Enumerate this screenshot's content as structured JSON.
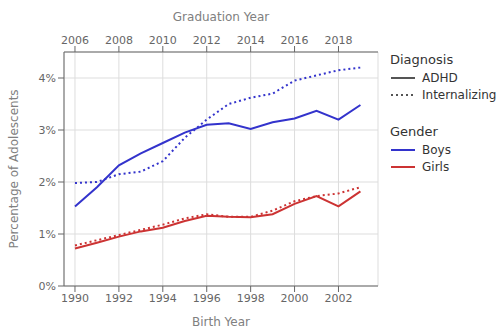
{
  "chart_data": {
    "type": "line",
    "xlabel": "Birth Year",
    "ylabel": "Percentage of Adolescents",
    "x2label": "Graduation Year",
    "x": [
      1990,
      1991,
      1992,
      1993,
      1994,
      1995,
      1996,
      1997,
      1998,
      1999,
      2000,
      2001,
      2002,
      2003
    ],
    "xlim": [
      1989.5,
      2003.8
    ],
    "xticks": [
      1990,
      1992,
      1994,
      1996,
      1998,
      2000,
      2002
    ],
    "x2lim": [
      1989.5,
      2003.8
    ],
    "x2ticks": [
      {
        "value": 1990,
        "label": "2006"
      },
      {
        "value": 1992,
        "label": "2008"
      },
      {
        "value": 1994,
        "label": "2010"
      },
      {
        "value": 1996,
        "label": "2012"
      },
      {
        "value": 1998,
        "label": "2014"
      },
      {
        "value": 2000,
        "label": "2016"
      },
      {
        "value": 2002,
        "label": "2018"
      }
    ],
    "ylim": [
      0,
      0.045
    ],
    "yticks": [
      {
        "value": 0,
        "label": "0%"
      },
      {
        "value": 0.01,
        "label": "1%"
      },
      {
        "value": 0.02,
        "label": "2%"
      },
      {
        "value": 0.03,
        "label": "3%"
      },
      {
        "value": 0.04,
        "label": "4%"
      }
    ],
    "grid": true,
    "legend": "right",
    "series": [
      {
        "color": "#3333cc",
        "line_style": "solid",
        "values": [
          0.0153,
          0.019,
          0.0232,
          0.0255,
          0.0275,
          0.0295,
          0.031,
          0.0313,
          0.0302,
          0.0315,
          0.0322,
          0.0337,
          0.032,
          0.0348
        ]
      },
      {
        "color": "#3333cc",
        "line_style": "dotted",
        "values": [
          0.0198,
          0.02,
          0.0215,
          0.022,
          0.024,
          0.0285,
          0.032,
          0.035,
          0.0362,
          0.037,
          0.0395,
          0.0405,
          0.0415,
          0.042
        ]
      },
      {
        "color": "#cc3333",
        "line_style": "solid",
        "values": [
          0.0072,
          0.0083,
          0.0095,
          0.0105,
          0.0112,
          0.0125,
          0.0135,
          0.0133,
          0.0132,
          0.0138,
          0.0158,
          0.0173,
          0.0153,
          0.0182
        ]
      },
      {
        "color": "#cc3333",
        "line_style": "dotted",
        "values": [
          0.0078,
          0.0088,
          0.0098,
          0.0108,
          0.0118,
          0.013,
          0.0138,
          0.0133,
          0.0133,
          0.0145,
          0.0163,
          0.0173,
          0.0178,
          0.019
        ]
      }
    ],
    "legends": [
      {
        "title": "Diagnosis",
        "entries": [
          {
            "label": "ADHD",
            "color": "#555555",
            "line_style": "solid"
          },
          {
            "label": "Internalizing",
            "color": "#555555",
            "line_style": "dotted"
          }
        ]
      },
      {
        "title": "Gender",
        "entries": [
          {
            "label": "Boys",
            "color": "#3333cc",
            "line_style": "solid"
          },
          {
            "label": "Girls",
            "color": "#cc3333",
            "line_style": "solid"
          }
        ]
      }
    ]
  }
}
